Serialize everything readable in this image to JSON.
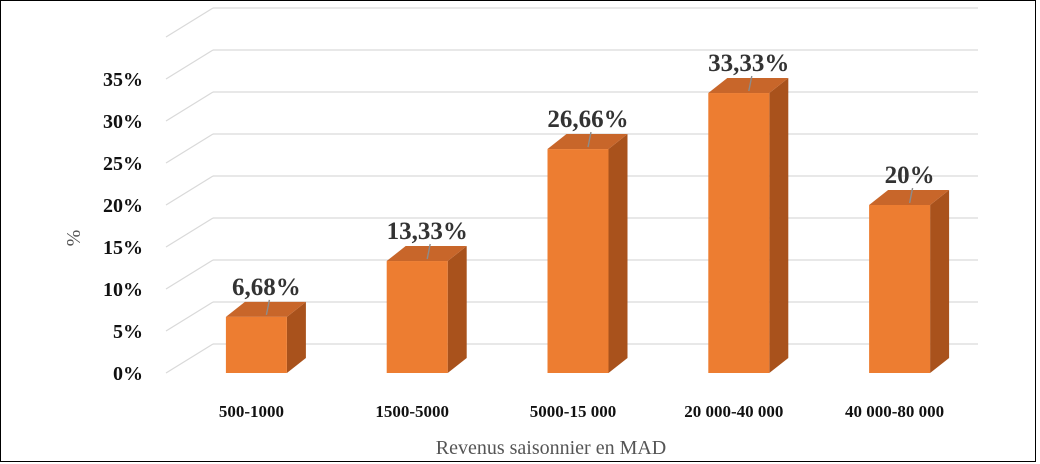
{
  "chart_data": {
    "type": "bar",
    "style": "3d-column",
    "categories": [
      "500-1000",
      "1500-5000",
      "5000-15 000",
      "20 000-40 000",
      "40 000-80 000"
    ],
    "values": [
      6.68,
      13.33,
      26.66,
      33.33,
      20
    ],
    "data_labels": [
      "6,68%",
      "13,33%",
      "26,66%",
      "33,33%",
      "20%"
    ],
    "title": "",
    "xlabel": "Revenus saisonnier en MAD",
    "ylabel": "%",
    "ylim": [
      0,
      35
    ],
    "yticks": [
      0,
      5,
      10,
      15,
      20,
      25,
      30,
      35
    ],
    "ytick_labels": [
      "0%",
      "5%",
      "10%",
      "15%",
      "20%",
      "25%",
      "30%",
      "35%"
    ],
    "grid": true,
    "legend": "none",
    "colors": {
      "bar_front": "#ED7D31",
      "bar_side": "#A9521C",
      "bar_top": "#C8662A",
      "grid": "#D9D9D9"
    }
  }
}
